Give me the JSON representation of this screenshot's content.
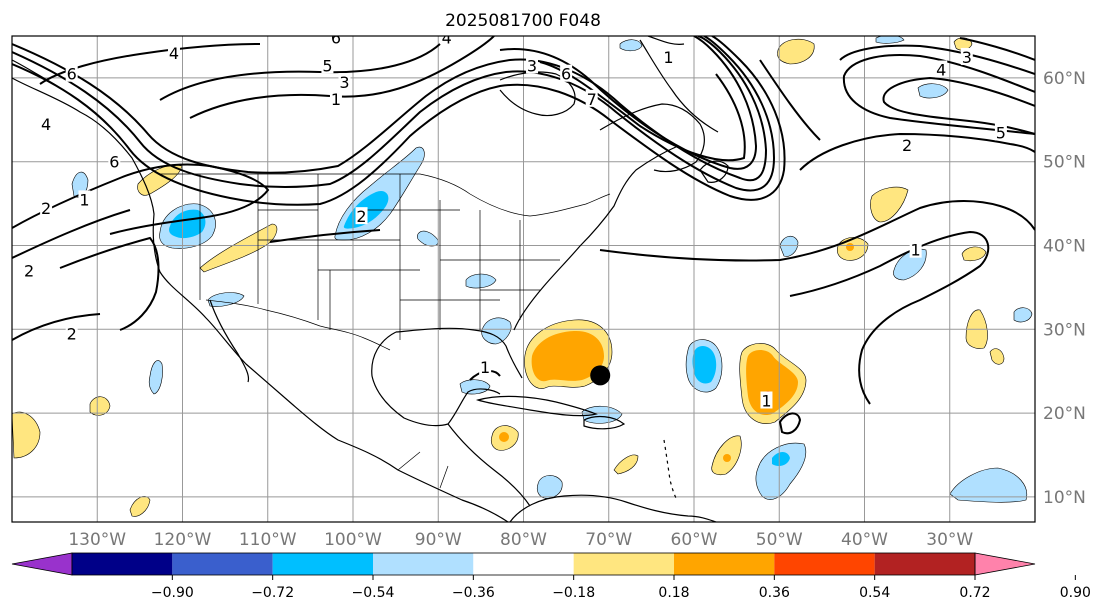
{
  "title": "2025081700 F048",
  "map": {
    "projection": "equirectangular",
    "lon_range": [
      -140,
      -20
    ],
    "lat_range": [
      7,
      65
    ],
    "lon_ticks": [
      {
        "lon": -130,
        "label": "130°W"
      },
      {
        "lon": -120,
        "label": "120°W"
      },
      {
        "lon": -110,
        "label": "110°W"
      },
      {
        "lon": -100,
        "label": "100°W"
      },
      {
        "lon": -90,
        "label": "90°W"
      },
      {
        "lon": -80,
        "label": "80°W"
      },
      {
        "lon": -70,
        "label": "70°W"
      },
      {
        "lon": -60,
        "label": "60°W"
      },
      {
        "lon": -50,
        "label": "50°W"
      },
      {
        "lon": -40,
        "label": "40°W"
      },
      {
        "lon": -30,
        "label": "30°W"
      }
    ],
    "lat_ticks": [
      {
        "lat": 60,
        "label": "60°N"
      },
      {
        "lat": 50,
        "label": "50°N"
      },
      {
        "lat": 40,
        "label": "40°N"
      },
      {
        "lat": 30,
        "label": "30°N"
      },
      {
        "lat": 20,
        "label": "20°N"
      },
      {
        "lat": 10,
        "label": "10°N"
      }
    ],
    "grid": true,
    "storm_marker": {
      "lon": -71,
      "lat": 24.5
    }
  },
  "colorbar": {
    "ticks": [
      "−0.90",
      "−0.72",
      "−0.54",
      "−0.36",
      "−0.18",
      "0.18",
      "0.36",
      "0.54",
      "0.72",
      "0.90"
    ],
    "colors": [
      "#9932cc",
      "#000088",
      "#3a5fcd",
      "#00bfff",
      "#b0e0ff",
      "#ffffff",
      "#ffe680",
      "#ffa500",
      "#ff4500",
      "#b22222",
      "#ff82ab"
    ],
    "extend": "both"
  },
  "contour_labels": [
    {
      "text": "4",
      "lon": -121,
      "lat": 63
    },
    {
      "text": "6",
      "lon": -133,
      "lat": 60.5
    },
    {
      "text": "5",
      "lon": -103,
      "lat": 61.5
    },
    {
      "text": "3",
      "lon": -101,
      "lat": 59.5
    },
    {
      "text": "1",
      "lon": -102,
      "lat": 57.5
    },
    {
      "text": "6",
      "lon": -102,
      "lat": 64.8
    },
    {
      "text": "4",
      "lon": -89,
      "lat": 64.8
    },
    {
      "text": "3",
      "lon": -79,
      "lat": 61.5
    },
    {
      "text": "6",
      "lon": -75,
      "lat": 60.5
    },
    {
      "text": "7",
      "lon": -72,
      "lat": 57.5
    },
    {
      "text": "1",
      "lon": -63,
      "lat": 62.5
    },
    {
      "text": "3",
      "lon": -28,
      "lat": 62.5
    },
    {
      "text": "4",
      "lon": -31,
      "lat": 61
    },
    {
      "text": "5",
      "lon": -24,
      "lat": 53.5
    },
    {
      "text": "2",
      "lon": -35,
      "lat": 52
    },
    {
      "text": "4",
      "lon": -136,
      "lat": 54.5
    },
    {
      "text": "6",
      "lon": -128,
      "lat": 50
    },
    {
      "text": "2",
      "lon": -136,
      "lat": 44.5
    },
    {
      "text": "1",
      "lon": -131.5,
      "lat": 45.5
    },
    {
      "text": "2",
      "lon": -99,
      "lat": 43.5
    },
    {
      "text": "2",
      "lon": -138,
      "lat": 37
    },
    {
      "text": "2",
      "lon": -133,
      "lat": 29.5
    },
    {
      "text": "1",
      "lon": -84.5,
      "lat": 25.5
    },
    {
      "text": "1",
      "lon": -34,
      "lat": 39.5
    },
    {
      "text": "1",
      "lon": -51.5,
      "lat": 21.5
    }
  ]
}
